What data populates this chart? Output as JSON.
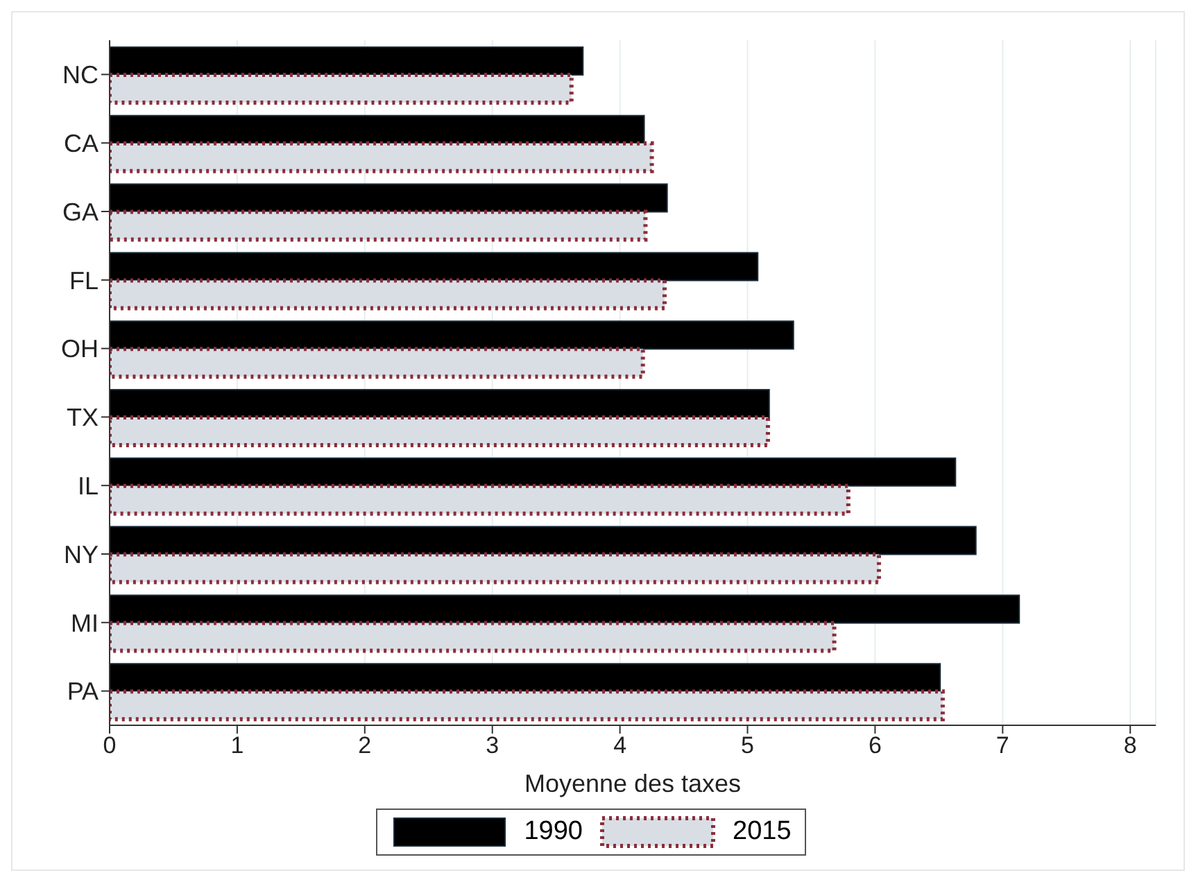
{
  "chart_data": {
    "type": "bar",
    "orientation": "horizontal",
    "xlabel": "Moyenne des taxes",
    "categories": [
      "NC",
      "CA",
      "GA",
      "FL",
      "OH",
      "TX",
      "IL",
      "NY",
      "MI",
      "PA"
    ],
    "series": [
      {
        "name": "1990",
        "color": "#000000",
        "values": [
          3.71,
          4.19,
          4.37,
          5.08,
          5.36,
          5.17,
          6.63,
          6.79,
          7.13,
          6.51
        ]
      },
      {
        "name": "2015",
        "color": "#8b2e3a",
        "values": [
          3.62,
          4.25,
          4.2,
          4.35,
          4.18,
          5.16,
          5.79,
          6.03,
          5.68,
          6.53
        ]
      }
    ],
    "xlim": [
      0,
      8.2
    ],
    "xticks": [
      0,
      1,
      2,
      3,
      4,
      5,
      6,
      7,
      8
    ],
    "grid": "x",
    "legend": "bottom"
  }
}
